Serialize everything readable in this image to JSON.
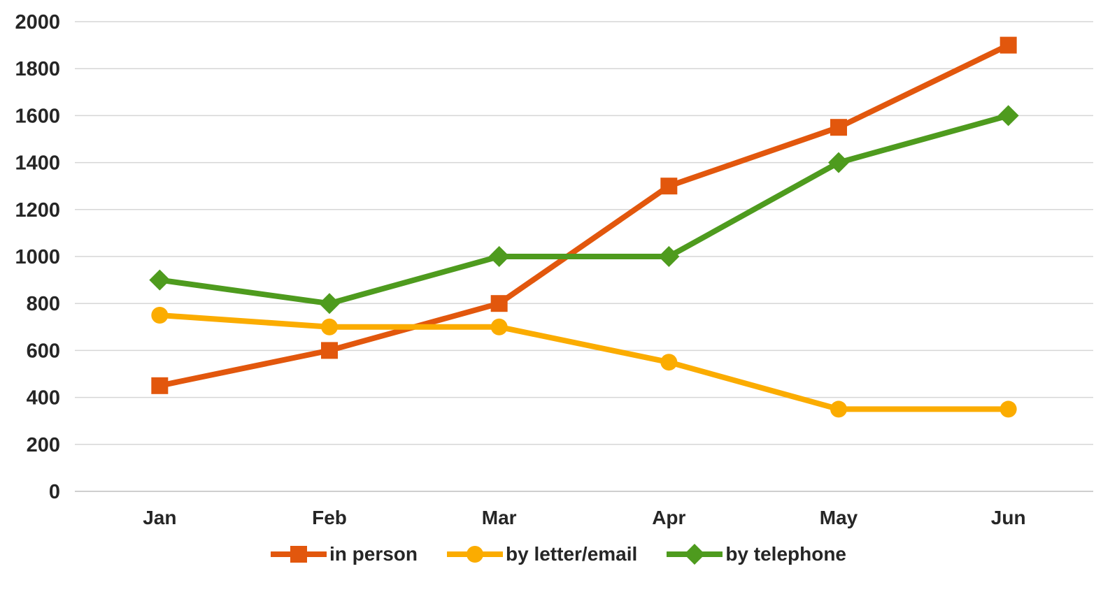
{
  "chart_data": {
    "type": "line",
    "title": "",
    "xlabel": "",
    "ylabel": "",
    "categories": [
      "Jan",
      "Feb",
      "Mar",
      "Apr",
      "May",
      "Jun"
    ],
    "series": [
      {
        "name": "in person",
        "color": "#E2570D",
        "marker": "square",
        "values": [
          450,
          600,
          800,
          1300,
          1550,
          1900
        ]
      },
      {
        "name": "by letter/email",
        "color": "#FBAC00",
        "marker": "circle",
        "values": [
          750,
          700,
          700,
          550,
          350,
          350
        ]
      },
      {
        "name": "by telephone",
        "color": "#4E9B1E",
        "marker": "diamond",
        "values": [
          900,
          800,
          1000,
          1000,
          1400,
          1600
        ]
      }
    ],
    "ylim": [
      0,
      2000
    ],
    "yticks": [
      "0",
      "200",
      "400",
      "600",
      "800",
      "1000",
      "1200",
      "1400",
      "1600",
      "1800",
      "2000"
    ],
    "grid": true,
    "legend_position": "bottom"
  },
  "style": {
    "grid_color": "#D6D6D6",
    "axis_line_color": "#BFBFBF",
    "text_color": "#262626"
  }
}
